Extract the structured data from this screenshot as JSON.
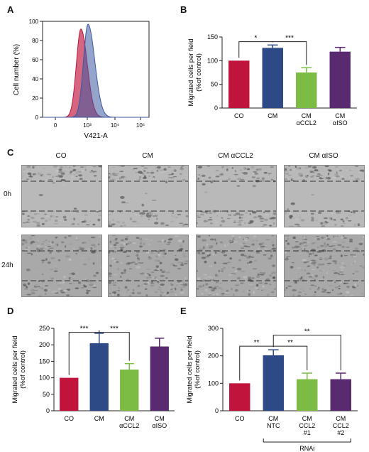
{
  "panels": {
    "A": {
      "letter": "A",
      "ylabel": "Cell number (%)",
      "xlabel": "V421-A",
      "yticks": [
        "0",
        "20",
        "40",
        "60",
        "80",
        "100"
      ],
      "xticks": [
        "0",
        "10³",
        "10⁴",
        "10⁵"
      ],
      "series_colors": {
        "red": "#c0143c",
        "blue": "#3c5aa0"
      }
    },
    "C": {
      "letter": "C",
      "columns": [
        "CO",
        "CM",
        "CM αCCL2",
        "CM αISO"
      ],
      "rows": [
        "0h",
        "24h"
      ]
    },
    "E_extra": {
      "rnai_label": "RNAi"
    }
  },
  "chart_data": [
    {
      "id": "B",
      "type": "bar",
      "letter": "B",
      "categories": [
        "CO",
        "CM",
        "CM\nαCCL2",
        "CM\nαISO"
      ],
      "values": [
        100,
        127,
        75,
        119
      ],
      "errors": [
        0,
        6,
        10,
        9
      ],
      "colors": [
        "#c0143c",
        "#2d4a86",
        "#7cbc45",
        "#5a2a70"
      ],
      "ylabel": "Migrated cells per field\n(%of control)",
      "ylim": [
        0,
        150
      ],
      "yticks": [
        0,
        50,
        100,
        150
      ],
      "significance": [
        {
          "from": 0,
          "to": 1,
          "label": "*",
          "level": 140
        },
        {
          "from": 1,
          "to": 2,
          "label": "***",
          "level": 140
        }
      ]
    },
    {
      "id": "D",
      "type": "bar",
      "letter": "D",
      "categories": [
        "CO",
        "CM",
        "CM\nαCCL2",
        "CM\nαISO"
      ],
      "values": [
        100,
        205,
        125,
        195
      ],
      "errors": [
        0,
        30,
        18,
        25
      ],
      "colors": [
        "#c0143c",
        "#2d4a86",
        "#7cbc45",
        "#5a2a70"
      ],
      "ylabel": "Migrated cells per field\n(%of control)",
      "ylim": [
        0,
        250
      ],
      "yticks": [
        0,
        50,
        100,
        150,
        200,
        250
      ],
      "significance": [
        {
          "from": 0,
          "to": 1,
          "label": "***",
          "level": 238
        },
        {
          "from": 1,
          "to": 2,
          "label": "***",
          "level": 238
        }
      ]
    },
    {
      "id": "E",
      "type": "bar",
      "letter": "E",
      "categories": [
        "CO",
        "CM\nNTC",
        "CM\nCCL2\n#1",
        "CM\nCCL2\n#2"
      ],
      "values": [
        100,
        202,
        115,
        115
      ],
      "errors": [
        0,
        20,
        22,
        22
      ],
      "colors": [
        "#c0143c",
        "#2d4a86",
        "#7cbc45",
        "#5a2a70"
      ],
      "ylabel": "Migrated cells per field\n(%of control)",
      "ylim": [
        0,
        300
      ],
      "yticks": [
        0,
        100,
        200,
        300
      ],
      "significance": [
        {
          "from": 0,
          "to": 1,
          "label": "**",
          "level": 235
        },
        {
          "from": 1,
          "to": 2,
          "label": "**",
          "level": 235
        },
        {
          "from": 1,
          "to": 3,
          "label": "**",
          "level": 275
        }
      ]
    }
  ]
}
